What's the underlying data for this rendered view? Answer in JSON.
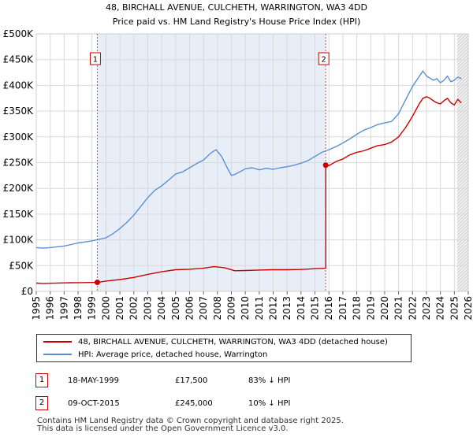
{
  "chart_data": {
    "type": "line",
    "title": "48, BIRCHALL AVENUE, CULCHETH, WARRINGTON, WA3 4DD",
    "subtitle": "Price paid vs. HM Land Registry's House Price Index (HPI)",
    "xlim": [
      1995,
      2026
    ],
    "ylim": [
      0,
      500000
    ],
    "x_ticks": [
      "1995",
      "1996",
      "1997",
      "1998",
      "1999",
      "2000",
      "2001",
      "2002",
      "2003",
      "2004",
      "2005",
      "2006",
      "2007",
      "2008",
      "2009",
      "2010",
      "2011",
      "2012",
      "2013",
      "2014",
      "2015",
      "2016",
      "2017",
      "2018",
      "2019",
      "2020",
      "2021",
      "2022",
      "2023",
      "2024",
      "2025",
      "2026"
    ],
    "y_ticks": [
      {
        "value": 0,
        "label": "£0"
      },
      {
        "value": 50000,
        "label": "£50K"
      },
      {
        "value": 100000,
        "label": "£100K"
      },
      {
        "value": 150000,
        "label": "£150K"
      },
      {
        "value": 200000,
        "label": "£200K"
      },
      {
        "value": 250000,
        "label": "£250K"
      },
      {
        "value": 300000,
        "label": "£300K"
      },
      {
        "value": 350000,
        "label": "£350K"
      },
      {
        "value": 400000,
        "label": "£400K"
      },
      {
        "value": 450000,
        "label": "£450K"
      },
      {
        "value": 500000,
        "label": "£500K"
      }
    ],
    "shaded_period": [
      1999.38,
      2015.77
    ],
    "forecast_start": 2025.2,
    "series": [
      {
        "name": "48, BIRCHALL AVENUE, CULCHETH, WARRINGTON, WA3 4DD (detached house)",
        "color": "#cc0000",
        "x": [
          1995.0,
          1995.5,
          1996.0,
          1996.5,
          1997.0,
          1997.5,
          1998.0,
          1998.5,
          1999.0,
          1999.38,
          1999.38,
          2000.0,
          2001.0,
          2002.0,
          2003.0,
          2004.0,
          2005.0,
          2006.0,
          2007.0,
          2007.75,
          2008.5,
          2009.25,
          2010.0,
          2011.0,
          2012.0,
          2013.0,
          2014.0,
          2015.0,
          2015.77,
          2015.77,
          2016.0,
          2016.5,
          2017.0,
          2017.5,
          2018.0,
          2018.5,
          2019.0,
          2019.5,
          2020.0,
          2020.5,
          2021.0,
          2021.5,
          2022.0,
          2022.5,
          2022.75,
          2023.0,
          2023.25,
          2023.5,
          2023.75,
          2024.0,
          2024.25,
          2024.5,
          2024.75,
          2025.0,
          2025.25,
          2025.5
        ],
        "y": [
          16000,
          15500,
          15800,
          16200,
          16500,
          16800,
          17000,
          17200,
          17300,
          17500,
          17500,
          20000,
          23000,
          27000,
          33000,
          38000,
          42000,
          43000,
          45000,
          48000,
          46000,
          40000,
          40500,
          41500,
          42000,
          42000,
          42500,
          44000,
          45000,
          245000,
          244000,
          252000,
          257000,
          265000,
          270000,
          273000,
          278000,
          283000,
          285000,
          290000,
          300000,
          318000,
          340000,
          365000,
          375000,
          378000,
          375000,
          370000,
          366000,
          364000,
          370000,
          375000,
          366000,
          362000,
          373000,
          366000
        ]
      },
      {
        "name": "HPI: Average price, detached house, Warrington",
        "color": "#5b8fd2",
        "x": [
          1995.0,
          1995.5,
          1996.0,
          1996.5,
          1997.0,
          1997.5,
          1998.0,
          1998.5,
          1999.0,
          1999.5,
          2000.0,
          2000.5,
          2001.0,
          2001.5,
          2002.0,
          2002.5,
          2003.0,
          2003.5,
          2004.0,
          2004.5,
          2005.0,
          2005.5,
          2006.0,
          2006.5,
          2007.0,
          2007.5,
          2007.9,
          2008.3,
          2008.7,
          2009.0,
          2009.25,
          2009.6,
          2010.0,
          2010.5,
          2011.0,
          2011.5,
          2012.0,
          2012.5,
          2013.0,
          2013.5,
          2014.0,
          2014.5,
          2015.0,
          2015.5,
          2016.0,
          2016.5,
          2017.0,
          2017.5,
          2018.0,
          2018.5,
          2019.0,
          2019.5,
          2020.0,
          2020.5,
          2021.0,
          2021.5,
          2022.0,
          2022.5,
          2022.75,
          2023.0,
          2023.25,
          2023.5,
          2023.75,
          2024.0,
          2024.25,
          2024.5,
          2024.75,
          2025.0,
          2025.25,
          2025.5
        ],
        "y": [
          85000,
          84000,
          85000,
          86500,
          88000,
          91000,
          94000,
          96000,
          98000,
          101000,
          104000,
          112000,
          122000,
          134000,
          148000,
          165000,
          182000,
          196000,
          205000,
          216000,
          228000,
          232000,
          240000,
          248000,
          255000,
          268000,
          275000,
          262000,
          240000,
          225000,
          227000,
          232000,
          238000,
          240000,
          236000,
          239000,
          237000,
          240000,
          242000,
          245000,
          249000,
          254000,
          262000,
          270000,
          275000,
          281000,
          288000,
          296000,
          305000,
          313000,
          318000,
          324000,
          327000,
          330000,
          345000,
          372000,
          398000,
          418000,
          428000,
          418000,
          414000,
          410000,
          413000,
          405000,
          410000,
          418000,
          407000,
          410000,
          416000,
          413000
        ]
      }
    ],
    "transactions": [
      {
        "id": "1",
        "date": "18-MAY-1999",
        "x": 1999.38,
        "price_value": 17500,
        "price": "£17,500",
        "hpi": "83% ↓ HPI"
      },
      {
        "id": "2",
        "date": "09-OCT-2015",
        "x": 2015.77,
        "price_value": 245000,
        "price": "£245,000",
        "hpi": "10% ↓ HPI"
      }
    ]
  },
  "colors": {
    "accent": "#cc0000",
    "hpi": "#5b8fd2",
    "shade": "#e8eef8",
    "grid": "#d9d9d9"
  },
  "footer": {
    "line1": "Contains HM Land Registry data © Crown copyright and database right 2025.",
    "line2": "This data is licensed under the Open Government Licence v3.0."
  }
}
